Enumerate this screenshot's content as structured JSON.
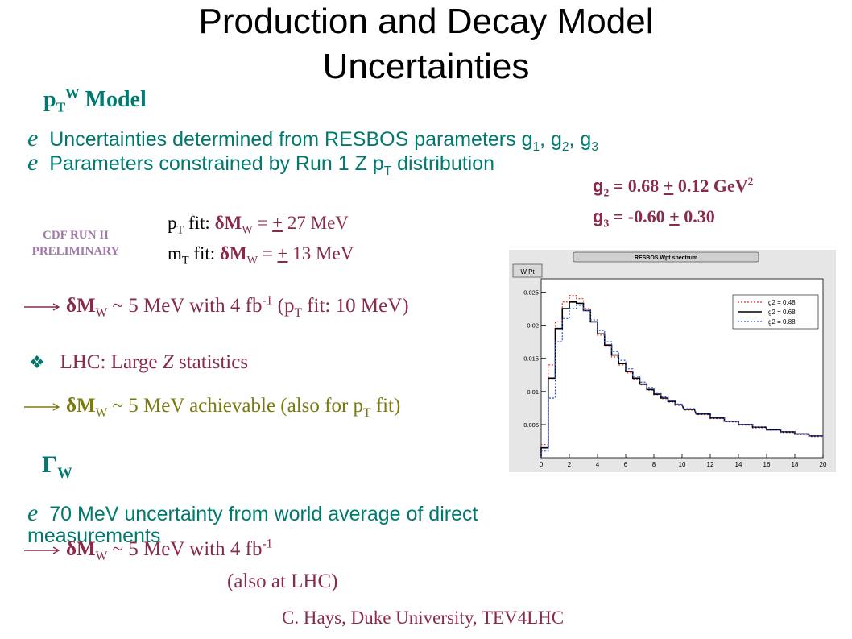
{
  "title_line1": "Production and Decay Model",
  "title_line2": "Uncertainties",
  "ptw_model": {
    "p": "p",
    "T": "T",
    "W": "W",
    "label": "Model"
  },
  "bullet1": {
    "text": "Uncertainties determined from RESBOS parameters g",
    "s1": "1",
    "c1": ", g",
    "s2": "2",
    "c2": ", g",
    "s3": "3"
  },
  "bullet2": {
    "text": "Parameters constrained by Run 1 Z p",
    "sub": "T",
    "tail": " distribution"
  },
  "g2_line": {
    "g": "g",
    "sub": "2",
    "eq": " = 0.68 ",
    "pm": "+",
    "val": " 0.12 GeV",
    "sup": "2"
  },
  "g3_line": {
    "g": "g",
    "sub": "3",
    "eq": " = -0.60 ",
    "pm": "+",
    "val": " 0.30"
  },
  "prelim_line1": "CDF RUN II",
  "prelim_line2": "PRELIMINARY",
  "pt_fit": {
    "a": "p",
    "sub": "T",
    "b": " fit:  ",
    "d": "δM",
    "w": "W",
    "eq": " = ",
    "pm": "+",
    "val": " 27 MeV"
  },
  "mt_fit": {
    "a": "m",
    "sub": "T",
    "b": " fit:  ",
    "d": "δM",
    "w": "W",
    "eq": " = ",
    "pm": "+",
    "val": " 13 MeV"
  },
  "arrow1": {
    "d": "δM",
    "w": "W",
    "mid": " ~ 5 MeV with 4 fb",
    "sup": "-1",
    "p1": " (p",
    "sub": "T",
    "p2": " fit: 10 MeV)"
  },
  "lhc_line": {
    "bullet": "❖",
    "a": "LHC:  Large ",
    "z": "Z",
    "b": " statistics"
  },
  "arrow2": {
    "d": "δM",
    "w": "W",
    "mid": " ~ 5 MeV achievable (also for p",
    "sub": "T",
    "tail": " fit)"
  },
  "gamma_w": {
    "g": "Γ",
    "w": "W"
  },
  "bullet3_line1": "70 MeV uncertainty from world average of direct",
  "bullet3_line2": "measurements",
  "arrow3": {
    "d": "δM",
    "w": "W",
    "mid": " ~ 5 MeV with 4 fb",
    "sup": "-1"
  },
  "also_lhc": "(also at LHC)",
  "footer": "C. Hays, Duke University, TEV4LHC",
  "colors": {
    "teal": "#007a6e",
    "maroon": "#8a2a4a",
    "olive": "#7a7a10",
    "prelim": "#a07aa8"
  },
  "chart_data": {
    "type": "line",
    "title": "RESBOS Wpt spectrum",
    "box_label": "W Pt",
    "xlim": [
      0,
      20
    ],
    "ylim": [
      0,
      0.027
    ],
    "x_ticks": [
      0,
      2,
      4,
      6,
      8,
      10,
      12,
      14,
      16,
      18,
      20
    ],
    "y_ticks": [
      0.005,
      0.01,
      0.015,
      0.02,
      0.025
    ],
    "y_tick_labels": [
      "0.005",
      "0.01",
      "0.015",
      "0.02",
      "0.025"
    ],
    "legend_position": "top-right",
    "x": [
      0.25,
      0.75,
      1.25,
      1.75,
      2.25,
      2.75,
      3.25,
      3.75,
      4.25,
      4.75,
      5.25,
      5.75,
      6.25,
      6.75,
      7.25,
      7.75,
      8.25,
      8.75,
      9.25,
      9.75,
      10.5,
      11.5,
      12.5,
      13.5,
      14.5,
      15.5,
      16.5,
      17.5,
      18.5,
      19.5
    ],
    "series": [
      {
        "name": "g2 = 0.48",
        "color": "#e03030",
        "dash": "dotted",
        "values": [
          0.002,
          0.014,
          0.0205,
          0.0235,
          0.0245,
          0.024,
          0.0225,
          0.0205,
          0.0185,
          0.0168,
          0.0152,
          0.014,
          0.0128,
          0.0118,
          0.011,
          0.0102,
          0.0095,
          0.0089,
          0.0084,
          0.0079,
          0.0072,
          0.0065,
          0.0059,
          0.0054,
          0.0049,
          0.0045,
          0.0042,
          0.0038,
          0.0035,
          0.0032
        ]
      },
      {
        "name": "g2 = 0.68",
        "color": "#000000",
        "dash": "solid",
        "values": [
          0.0015,
          0.012,
          0.0195,
          0.0225,
          0.0235,
          0.0233,
          0.0222,
          0.0205,
          0.0187,
          0.017,
          0.0155,
          0.0142,
          0.013,
          0.012,
          0.0111,
          0.0103,
          0.0096,
          0.009,
          0.0085,
          0.008,
          0.0073,
          0.0066,
          0.006,
          0.0055,
          0.005,
          0.0046,
          0.0042,
          0.0039,
          0.0036,
          0.0033
        ]
      },
      {
        "name": "g2 = 0.88",
        "color": "#3050e0",
        "dash": "dotted",
        "values": [
          0.001,
          0.009,
          0.0175,
          0.021,
          0.0225,
          0.023,
          0.0222,
          0.0208,
          0.0192,
          0.0175,
          0.016,
          0.0147,
          0.0134,
          0.0123,
          0.0114,
          0.0106,
          0.0099,
          0.0092,
          0.0086,
          0.0081,
          0.0074,
          0.0067,
          0.0061,
          0.0055,
          0.005,
          0.0046,
          0.0043,
          0.0039,
          0.0036,
          0.0033
        ]
      }
    ]
  }
}
